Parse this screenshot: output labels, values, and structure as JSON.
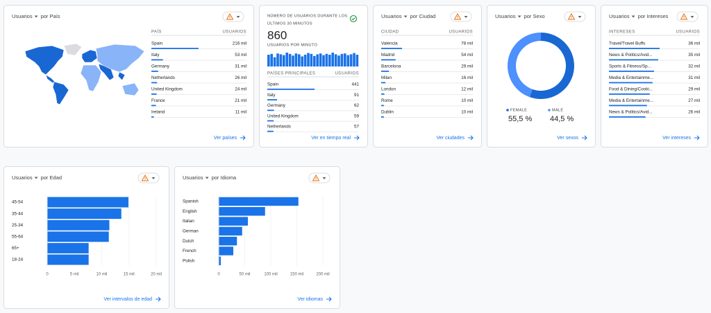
{
  "cards": {
    "country": {
      "title": "Usuarios",
      "subtitle": "por País",
      "col1": "PAÍS",
      "col2": "USUARIOS",
      "rows": [
        {
          "name": "Spain",
          "value": 216,
          "value_label": "216 mil"
        },
        {
          "name": "Italy",
          "value": 53,
          "value_label": "53 mil"
        },
        {
          "name": "Germany",
          "value": 31,
          "value_label": "31 mil"
        },
        {
          "name": "Netherlands",
          "value": 26,
          "value_label": "26 mil"
        },
        {
          "name": "United Kingdom",
          "value": 24,
          "value_label": "24 mil"
        },
        {
          "name": "France",
          "value": 21,
          "value_label": "21 mil"
        },
        {
          "name": "Ireland",
          "value": 11,
          "value_label": "11 mil"
        }
      ],
      "link": "Ver países"
    },
    "realtime": {
      "title_lines": [
        "NÚMERO DE USUARIOS DURANTE LOS",
        "ÚLTIMOS 30 MINUTOS"
      ],
      "total": 860,
      "per_minute_label": "USUARIOS POR MINUTO",
      "per_minute": [
        28,
        30,
        22,
        31,
        29,
        27,
        33,
        30,
        26,
        31,
        29,
        24,
        28,
        32,
        30,
        25,
        29,
        31,
        27,
        30,
        28,
        33,
        29,
        26,
        30,
        31,
        27,
        29,
        32,
        28
      ],
      "col1": "PAÍSES PRINCIPALES",
      "col2": "USUARIOS",
      "rows": [
        {
          "name": "Spain",
          "value": 441
        },
        {
          "name": "Italy",
          "value": 91
        },
        {
          "name": "Germany",
          "value": 62
        },
        {
          "name": "United Kingdom",
          "value": 59
        },
        {
          "name": "Netherlands",
          "value": 57
        }
      ],
      "link": "Ver en tiempo real"
    },
    "city": {
      "title": "Usuarios",
      "subtitle": "por Ciudad",
      "col1": "CIUDAD",
      "col2": "USUARIOS",
      "rows": [
        {
          "name": "Valencia",
          "value": 78,
          "value_label": "78 mil"
        },
        {
          "name": "Madrid",
          "value": 54,
          "value_label": "54 mil"
        },
        {
          "name": "Barcelona",
          "value": 29,
          "value_label": "29 mil"
        },
        {
          "name": "Milan",
          "value": 16,
          "value_label": "16 mil"
        },
        {
          "name": "London",
          "value": 12,
          "value_label": "12 mil"
        },
        {
          "name": "Rome",
          "value": 10,
          "value_label": "10 mil"
        },
        {
          "name": "Dublin",
          "value": 10,
          "value_label": "10 mil"
        }
      ],
      "link": "Ver ciudades"
    },
    "sex": {
      "title": "Usuarios",
      "subtitle": "por Sexo",
      "series": [
        {
          "name": "FEMALE",
          "value": 55.5,
          "value_label": "55,5 %",
          "color": "#1967d2"
        },
        {
          "name": "MALE",
          "value": 44.5,
          "value_label": "44,5 %",
          "color": "#4d90fe"
        }
      ],
      "link": "Ver sexos"
    },
    "interests": {
      "title": "Usuarios",
      "subtitle": "por Intereses",
      "col1": "INTERESES",
      "col2": "USUARIOS",
      "rows": [
        {
          "name": "Travel/Travel Buffs",
          "value": 36,
          "value_label": "36 mil"
        },
        {
          "name": "News & Politics/Avid...",
          "value": 35,
          "value_label": "35 mil"
        },
        {
          "name": "Sports & Fitness/Sp...",
          "value": 32,
          "value_label": "32 mil"
        },
        {
          "name": "Media & Entertainme...",
          "value": 31,
          "value_label": "31 mil"
        },
        {
          "name": "Food & Dining/Cooki...",
          "value": 29,
          "value_label": "29 mil"
        },
        {
          "name": "Media & Entertainme...",
          "value": 27,
          "value_label": "27 mil"
        },
        {
          "name": "News & Politics/Avid...",
          "value": 26,
          "value_label": "26 mil"
        }
      ],
      "link": "Ver intereses"
    },
    "age": {
      "title": "Usuarios",
      "subtitle": "por Edad",
      "type": "bar",
      "color": "#1a73e8",
      "categories": [
        "45-54",
        "35-44",
        "25-34",
        "55-64",
        "65+",
        "18-24"
      ],
      "values": [
        14.9,
        13.6,
        11.4,
        11.3,
        7.6,
        7.6
      ],
      "xlim": [
        0,
        20
      ],
      "xticks": [
        0,
        {
          "value": 5,
          "label": "5 mil"
        },
        {
          "value": 10,
          "label": "10 mil"
        },
        {
          "value": 15,
          "label": "15 mil"
        },
        {
          "value": 20,
          "label": "20 mil"
        }
      ],
      "link": "Ver intervalos de edad"
    },
    "language": {
      "title": "Usuarios",
      "subtitle": "por Idioma",
      "type": "bar",
      "color": "#1a73e8",
      "categories": [
        "Spanish",
        "English",
        "Italian",
        "German",
        "Dutch",
        "French",
        "Polish"
      ],
      "values": [
        153,
        89,
        56,
        45,
        35,
        28,
        4
      ],
      "xlim": [
        0,
        200
      ],
      "xticks": [
        0,
        {
          "value": 50,
          "label": "50 mil"
        },
        {
          "value": 100,
          "label": "100 mil"
        },
        {
          "value": 150,
          "label": "150 mil"
        },
        {
          "value": 200,
          "label": "200 mil"
        }
      ],
      "link": "Ver idiomas"
    }
  }
}
